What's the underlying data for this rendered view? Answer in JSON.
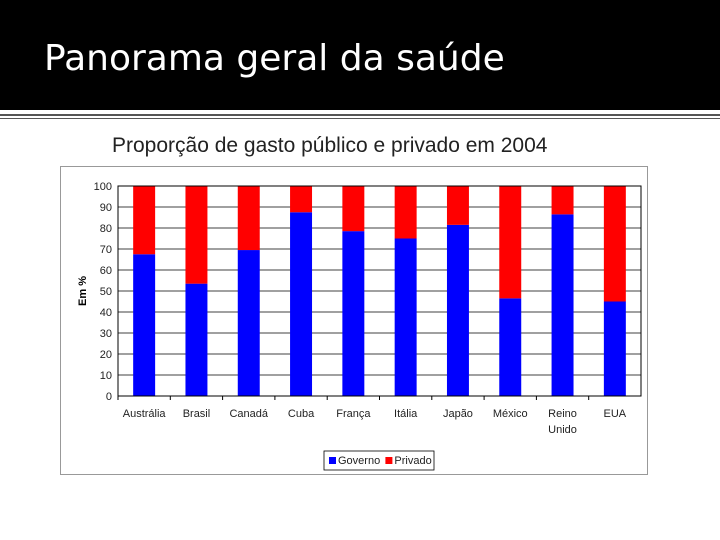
{
  "slide": {
    "title": "Panorama geral da saúde",
    "background": "#ffffff",
    "header_color": "#000000"
  },
  "chart_data": {
    "type": "bar",
    "stacked": true,
    "title": "Proporção de gasto público e privado em 2004",
    "xlabel": "",
    "ylabel": "Em %",
    "ylim": [
      0,
      100
    ],
    "yticks": [
      0,
      10,
      20,
      30,
      40,
      50,
      60,
      70,
      80,
      90,
      100
    ],
    "grid": true,
    "legend_position": "bottom",
    "categories": [
      "Austrália",
      "Brasil",
      "Canadá",
      "Cuba",
      "França",
      "Itália",
      "Japão",
      "México",
      "Reino Unido",
      "EUA"
    ],
    "series": [
      {
        "name": "Governo",
        "color": "#0000ff",
        "values": [
          67.5,
          53.5,
          69.5,
          87.5,
          78.5,
          75,
          81.5,
          46.5,
          86.5,
          45
        ]
      },
      {
        "name": "Privado",
        "color": "#ff0000",
        "values": [
          32.5,
          46.5,
          30.5,
          12.5,
          21.5,
          25,
          18.5,
          53.5,
          13.5,
          55
        ]
      }
    ]
  }
}
